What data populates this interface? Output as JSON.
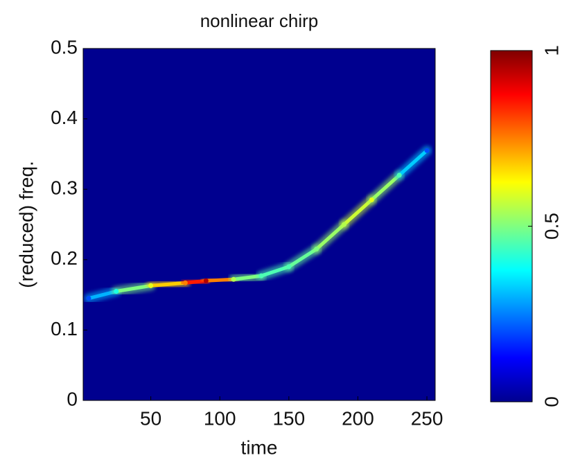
{
  "chart_data": {
    "type": "heatmap",
    "title": "nonlinear chirp",
    "x_label": "time",
    "y_label": "(reduced) freq.",
    "x": [
      5,
      25,
      50,
      75,
      90,
      110,
      130,
      150,
      170,
      190,
      210,
      230,
      250
    ],
    "values": [
      0.145,
      0.155,
      0.163,
      0.167,
      0.17,
      0.172,
      0.177,
      0.19,
      0.215,
      0.25,
      0.285,
      0.32,
      0.355
    ],
    "intensity": [
      0.2,
      0.4,
      0.6,
      0.75,
      0.95,
      0.55,
      0.45,
      0.45,
      0.5,
      0.55,
      0.6,
      0.45,
      0.2
    ],
    "background_color": "#00008f",
    "colormap": "jet",
    "xlim": [
      1,
      256
    ],
    "xticks": [
      50,
      100,
      150,
      200,
      250
    ],
    "ylim": [
      0,
      0.5
    ],
    "yticks": [
      0,
      0.1,
      0.2,
      0.3,
      0.4,
      0.5
    ],
    "clim": [
      0,
      1
    ],
    "cticks": [
      0,
      0.5,
      1
    ]
  }
}
